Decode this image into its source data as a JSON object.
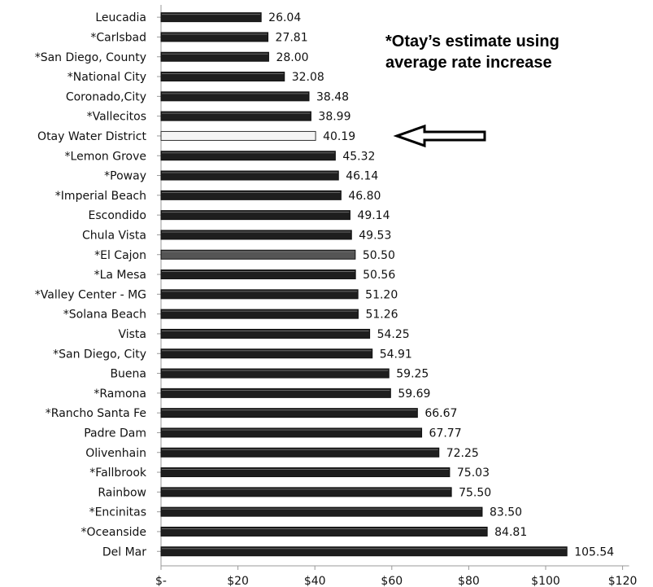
{
  "annotation": {
    "line1": "*Otay’s estimate using",
    "line2": "average rate increase"
  },
  "arrow_icon": "left-arrow-icon",
  "colors": {
    "bar_dark": "#1e1e1e",
    "bar_highlight": "#f4f4f4",
    "bar_gray": "#555555",
    "axis": "#999999"
  },
  "chart_data": {
    "type": "bar",
    "orientation": "horizontal",
    "categories": [
      "Leucadia",
      "*Carlsbad",
      "*San Diego, County",
      "*National City",
      "Coronado,City",
      "*Vallecitos",
      "Otay Water District",
      "*Lemon Grove",
      "*Poway",
      "*Imperial Beach",
      "Escondido",
      "Chula Vista",
      "*El Cajon",
      "*La Mesa",
      "*Valley Center - MG",
      "*Solana Beach",
      "Vista",
      "*San Diego, City",
      "Buena",
      "*Ramona",
      "*Rancho Santa Fe",
      "Padre Dam",
      "Olivenhain",
      "*Fallbrook",
      "Rainbow",
      "*Encinitas",
      "*Oceanside",
      "Del Mar"
    ],
    "values": [
      26.04,
      27.81,
      28.0,
      32.08,
      38.48,
      38.99,
      40.19,
      45.32,
      46.14,
      46.8,
      49.14,
      49.53,
      50.5,
      50.56,
      51.2,
      51.26,
      54.25,
      54.91,
      59.25,
      59.69,
      66.67,
      67.77,
      72.25,
      75.03,
      75.5,
      83.5,
      84.81,
      105.54
    ],
    "value_labels": [
      "26.04",
      "27.81",
      "28.00",
      "32.08",
      "38.48",
      "38.99",
      "40.19",
      "45.32",
      "46.14",
      "46.80",
      "49.14",
      "49.53",
      "50.50",
      "50.56",
      "51.20",
      "51.26",
      "54.25",
      "54.91",
      "59.25",
      "59.69",
      "66.67",
      "67.77",
      "72.25",
      "75.03",
      "75.50",
      "83.50",
      "84.81",
      "105.54"
    ],
    "highlight": [
      "Otay Water District"
    ],
    "gray": [
      "*El Cajon"
    ],
    "xlim": [
      0,
      120
    ],
    "x_ticks": [
      0,
      20,
      40,
      60,
      80,
      100,
      120
    ],
    "x_tick_labels": [
      "$-",
      "$20",
      "$40",
      "$60",
      "$80",
      "$100",
      "$120"
    ],
    "grid": false,
    "legend": "none",
    "title": "",
    "xlabel": "",
    "ylabel": ""
  }
}
